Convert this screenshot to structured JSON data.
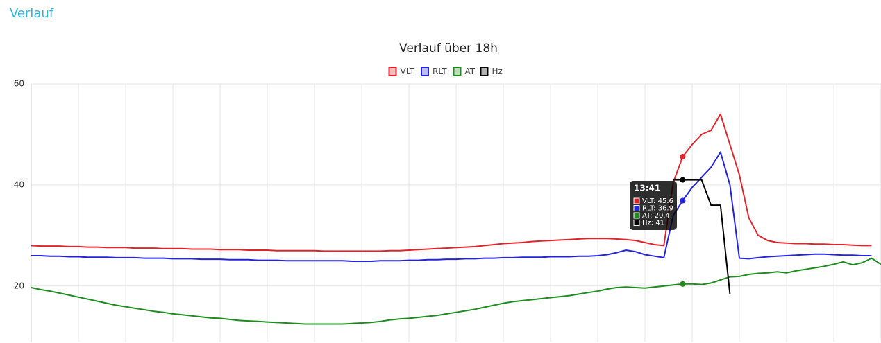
{
  "header": {
    "title": "Verlauf"
  },
  "chart_data": {
    "type": "line",
    "title": "Verlauf über 18h",
    "categories": [
      null,
      null,
      null,
      null,
      null,
      null,
      null,
      null,
      null,
      null,
      null,
      null,
      null,
      null,
      null,
      null,
      null,
      null,
      null,
      null,
      null,
      null,
      null,
      null,
      null,
      null,
      null,
      null,
      null,
      null,
      null,
      null,
      null,
      null,
      null,
      null,
      null,
      null,
      null,
      null,
      null,
      null,
      null,
      null,
      null,
      null,
      null,
      null,
      null,
      null,
      null,
      null,
      null,
      null,
      null,
      null,
      null,
      null,
      null,
      null,
      null,
      null,
      null,
      null,
      null,
      null,
      null,
      null,
      null,
      null,
      null,
      null,
      null,
      null,
      null,
      null,
      null,
      null,
      null,
      null,
      null,
      null,
      null,
      null,
      null,
      null,
      null,
      null,
      null,
      null,
      null
    ],
    "series": [
      {
        "name": "VLT",
        "color": "#e0242c",
        "values": [
          28.0,
          27.9,
          27.9,
          27.9,
          27.8,
          27.8,
          27.7,
          27.7,
          27.6,
          27.6,
          27.6,
          27.5,
          27.5,
          27.5,
          27.4,
          27.4,
          27.4,
          27.3,
          27.3,
          27.3,
          27.2,
          27.2,
          27.2,
          27.1,
          27.1,
          27.1,
          27.0,
          27.0,
          27.0,
          27.0,
          27.0,
          26.9,
          26.9,
          26.9,
          26.9,
          26.9,
          26.9,
          26.9,
          27.0,
          27.0,
          27.1,
          27.2,
          27.3,
          27.4,
          27.5,
          27.6,
          27.7,
          27.8,
          28.0,
          28.2,
          28.4,
          28.5,
          28.6,
          28.8,
          28.9,
          29.0,
          29.1,
          29.2,
          29.3,
          29.4,
          29.4,
          29.4,
          29.3,
          29.2,
          29.0,
          28.6,
          28.2,
          28.0,
          40.5,
          45.6,
          48.0,
          50.0,
          50.8,
          54.0,
          48.0,
          42.0,
          33.5,
          30.0,
          29.0,
          28.6,
          28.5,
          28.4,
          28.4,
          28.3,
          28.3,
          28.2,
          28.2,
          28.1,
          28.0,
          28.0,
          null
        ]
      },
      {
        "name": "RLT",
        "color": "#2424d8",
        "values": [
          26.0,
          26.0,
          25.9,
          25.9,
          25.8,
          25.8,
          25.7,
          25.7,
          25.7,
          25.6,
          25.6,
          25.6,
          25.5,
          25.5,
          25.5,
          25.4,
          25.4,
          25.4,
          25.3,
          25.3,
          25.3,
          25.2,
          25.2,
          25.2,
          25.1,
          25.1,
          25.1,
          25.0,
          25.0,
          25.0,
          25.0,
          25.0,
          25.0,
          25.0,
          24.9,
          24.9,
          24.9,
          25.0,
          25.0,
          25.0,
          25.1,
          25.1,
          25.2,
          25.2,
          25.3,
          25.3,
          25.4,
          25.4,
          25.5,
          25.5,
          25.6,
          25.6,
          25.7,
          25.7,
          25.7,
          25.8,
          25.8,
          25.8,
          25.9,
          25.9,
          26.0,
          26.2,
          26.6,
          27.1,
          26.8,
          26.2,
          25.9,
          25.6,
          34.0,
          36.9,
          39.5,
          41.5,
          43.5,
          46.5,
          40.0,
          25.5,
          25.4,
          25.6,
          25.8,
          25.9,
          26.0,
          26.1,
          26.2,
          26.3,
          26.3,
          26.2,
          26.1,
          26.1,
          26.0,
          26.0,
          null
        ]
      },
      {
        "name": "AT",
        "color": "#1e8c1e",
        "values": [
          19.7,
          19.3,
          19.0,
          18.6,
          18.2,
          17.8,
          17.4,
          17.0,
          16.6,
          16.2,
          15.9,
          15.6,
          15.3,
          15.0,
          14.8,
          14.5,
          14.3,
          14.1,
          13.9,
          13.7,
          13.6,
          13.4,
          13.2,
          13.1,
          13.0,
          12.9,
          12.8,
          12.7,
          12.6,
          12.5,
          12.5,
          12.5,
          12.5,
          12.5,
          12.6,
          12.7,
          12.8,
          13.0,
          13.3,
          13.5,
          13.6,
          13.8,
          14.0,
          14.2,
          14.5,
          14.8,
          15.1,
          15.4,
          15.8,
          16.2,
          16.6,
          16.9,
          17.1,
          17.3,
          17.5,
          17.7,
          17.9,
          18.1,
          18.4,
          18.7,
          19.0,
          19.4,
          19.7,
          19.8,
          19.7,
          19.6,
          19.8,
          20.0,
          20.2,
          20.4,
          20.4,
          20.3,
          20.6,
          21.2,
          21.8,
          21.9,
          22.3,
          22.5,
          22.6,
          22.8,
          22.6,
          23.0,
          23.3,
          23.6,
          23.9,
          24.3,
          24.8,
          24.2,
          24.6,
          25.5,
          24.3
        ]
      },
      {
        "name": "Hz",
        "color": "#000000",
        "values": [
          null,
          null,
          null,
          null,
          null,
          null,
          null,
          null,
          null,
          null,
          null,
          null,
          null,
          null,
          null,
          null,
          null,
          null,
          null,
          null,
          null,
          null,
          null,
          null,
          null,
          null,
          null,
          null,
          null,
          null,
          null,
          null,
          null,
          null,
          null,
          null,
          null,
          null,
          null,
          null,
          null,
          null,
          null,
          null,
          null,
          null,
          null,
          null,
          null,
          null,
          null,
          null,
          null,
          null,
          null,
          null,
          null,
          null,
          null,
          null,
          null,
          null,
          null,
          null,
          null,
          null,
          null,
          null,
          41,
          41,
          41,
          41,
          36,
          36,
          18.4,
          null,
          null,
          null,
          null,
          null,
          null,
          null,
          null,
          null,
          null,
          null,
          null,
          null,
          null,
          null,
          null
        ]
      }
    ],
    "ylim": [
      9,
      60
    ],
    "yticks": [
      20,
      40,
      60
    ],
    "grid": true,
    "legend": "top",
    "tooltip": {
      "title": "13:41",
      "items": [
        "VLT: 45.6",
        "RLT: 36.9",
        "AT: 20.4",
        "Hz: 41"
      ]
    }
  }
}
